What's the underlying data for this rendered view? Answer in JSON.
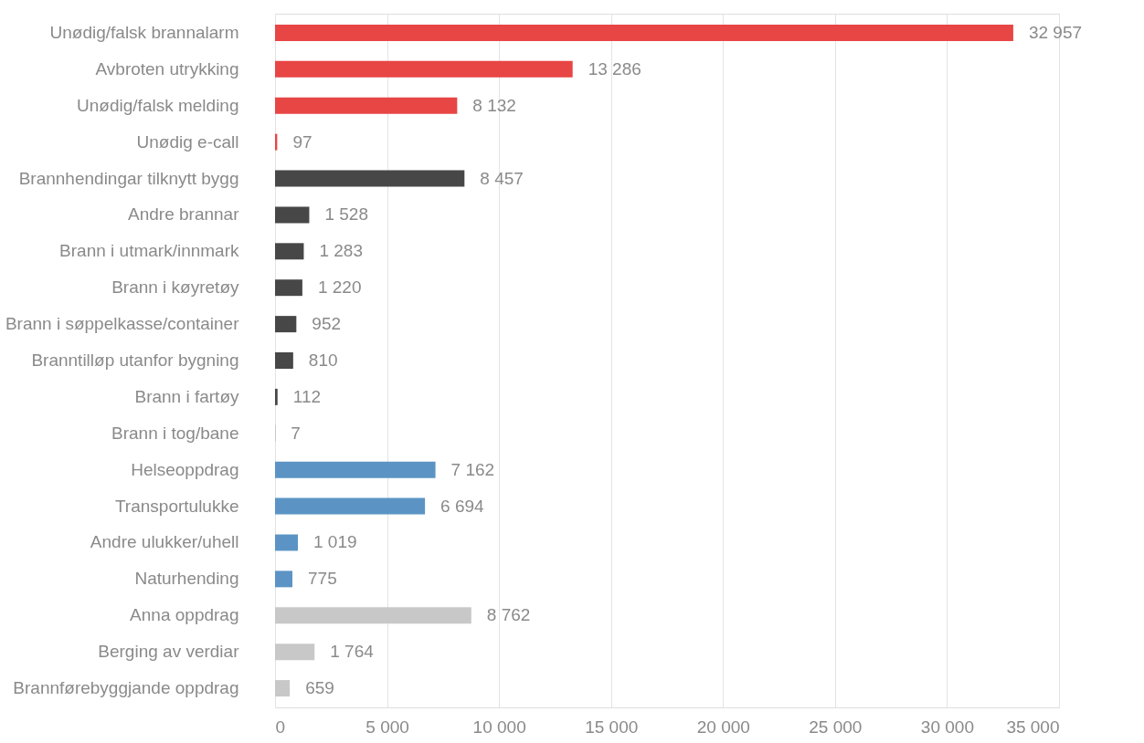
{
  "chart_data": {
    "type": "bar",
    "orientation": "horizontal",
    "categories": [
      "Unødig/falsk brannalarm",
      "Avbroten utrykking",
      "Unødig/falsk melding",
      "Unødig e-call",
      "Brannhendingar tilknytt bygg",
      "Andre brannar",
      "Brann i utmark/innmark",
      "Brann i køyretøy",
      "Brann i søppelkasse/container",
      "Branntilløp utanfor bygning",
      "Brann i fartøy",
      "Brann i tog/bane",
      "Helseoppdrag",
      "Transportulukke",
      "Andre ulukker/uhell",
      "Naturhending",
      "Anna oppdrag",
      "Berging av verdiar",
      "Brannførebyggjande oppdrag"
    ],
    "values": [
      32957,
      13286,
      8132,
      97,
      8457,
      1528,
      1283,
      1220,
      952,
      810,
      112,
      7,
      7162,
      6694,
      1019,
      775,
      8762,
      1764,
      659
    ],
    "value_labels": [
      "32 957",
      "13 286",
      "8 132",
      "97",
      "8 457",
      "1 528",
      "1 283",
      "1 220",
      "952",
      "810",
      "112",
      "7",
      "7 162",
      "6 694",
      "1 019",
      "775",
      "8 762",
      "1 764",
      "659"
    ],
    "colors": [
      "#e84545",
      "#e84545",
      "#e84545",
      "#e84545",
      "#474747",
      "#474747",
      "#474747",
      "#474747",
      "#474747",
      "#474747",
      "#474747",
      "#474747",
      "#5b94c4",
      "#5b94c4",
      "#5b94c4",
      "#5b94c4",
      "#c8c8c8",
      "#c8c8c8",
      "#c8c8c8"
    ],
    "xlim": [
      0,
      35000
    ],
    "xticks": [
      0,
      {
        "value": 5000,
        "label": "5 000"
      },
      {
        "value": 10000,
        "label": "10 000"
      },
      {
        "value": 15000,
        "label": "15 000"
      },
      {
        "value": 20000,
        "label": "20 000"
      },
      {
        "value": 25000,
        "label": "25 000"
      },
      {
        "value": 30000,
        "label": "30 000"
      },
      {
        "value": 35000,
        "label": "35 000"
      }
    ],
    "grid": "x"
  }
}
